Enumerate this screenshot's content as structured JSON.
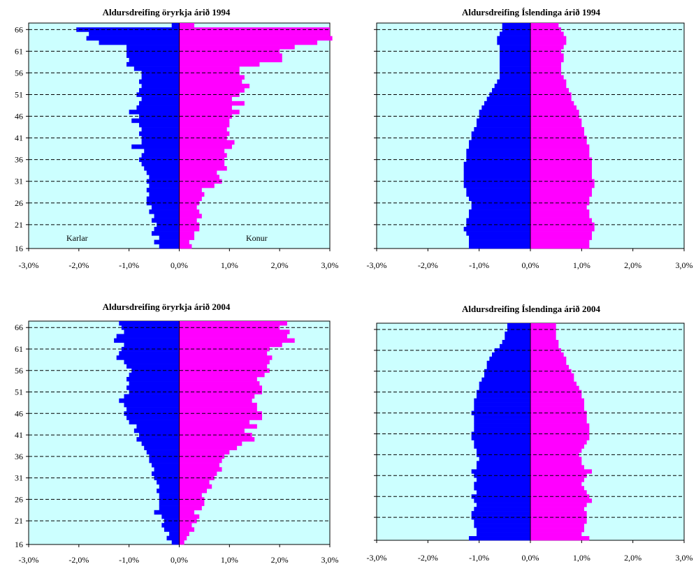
{
  "colors": {
    "plot_bg": "#ccffff",
    "male": "#0000ff",
    "female": "#ff00ff",
    "grid": "#000000"
  },
  "chart_data": [
    {
      "type": "bar",
      "orientation": "horizontal",
      "title": "Aldursdreifing öryrkja árið 1994",
      "y_tick_labels": [
        "66",
        "61",
        "56",
        "51",
        "46",
        "41",
        "36",
        "31",
        "26",
        "21",
        "16"
      ],
      "x_tick_labels": [
        "-3,0%",
        "-2,0%",
        "-1,0%",
        "0,0%",
        "1,0%",
        "2,0%",
        "3,0%"
      ],
      "xlim": [
        -3,
        3
      ],
      "ages": [
        16,
        17,
        18,
        19,
        20,
        21,
        22,
        23,
        24,
        25,
        26,
        27,
        28,
        29,
        30,
        31,
        32,
        33,
        34,
        35,
        36,
        37,
        38,
        39,
        40,
        41,
        42,
        43,
        44,
        45,
        46,
        47,
        48,
        49,
        50,
        51,
        52,
        53,
        54,
        55,
        56,
        57,
        58,
        59,
        60,
        61,
        62,
        63,
        64,
        65,
        66,
        67
      ],
      "series": [
        {
          "name": "Karlar",
          "values": [
            -0.4,
            -0.5,
            -0.4,
            -0.55,
            -0.5,
            -0.45,
            -0.55,
            -0.5,
            -0.6,
            -0.55,
            -0.65,
            -0.65,
            -0.6,
            -0.65,
            -0.6,
            -0.65,
            -0.6,
            -0.65,
            -0.7,
            -0.75,
            -0.8,
            -0.75,
            -0.7,
            -0.95,
            -0.75,
            -0.75,
            -0.8,
            -0.75,
            -0.8,
            -0.95,
            -0.8,
            -1.0,
            -0.85,
            -0.8,
            -0.75,
            -0.85,
            -0.8,
            -0.75,
            -0.8,
            -0.75,
            -0.75,
            -0.9,
            -1.05,
            -1.0,
            -1.05,
            -1.05,
            -1.05,
            -1.6,
            -1.85,
            -1.8,
            -2.05,
            -0.15
          ]
        },
        {
          "name": "Konur",
          "values": [
            0.25,
            0.2,
            0.3,
            0.3,
            0.4,
            0.4,
            0.35,
            0.45,
            0.4,
            0.35,
            0.4,
            0.45,
            0.5,
            0.45,
            0.7,
            0.85,
            0.8,
            0.75,
            0.95,
            0.9,
            0.9,
            0.95,
            0.9,
            1.05,
            1.1,
            0.95,
            1.0,
            0.95,
            1.0,
            1.0,
            1.05,
            1.2,
            1.05,
            1.3,
            1.05,
            1.2,
            1.3,
            1.4,
            1.25,
            1.3,
            1.2,
            1.2,
            1.6,
            2.05,
            2.05,
            2.0,
            2.3,
            2.75,
            3.05,
            3.0,
            3.0,
            0.3
          ]
        }
      ],
      "annotations": [
        "Karlar",
        "Konur"
      ]
    },
    {
      "type": "bar",
      "orientation": "horizontal",
      "title": "Aldursdreifing Íslendinga árið 1994",
      "x_tick_labels": [
        "-3,0%",
        "-2,0%",
        "-1,0%",
        "0,0%",
        "1,0%",
        "2,0%",
        "3,0%"
      ],
      "xlim": [
        -3,
        3
      ],
      "ages": [
        16,
        17,
        18,
        19,
        20,
        21,
        22,
        23,
        24,
        25,
        26,
        27,
        28,
        29,
        30,
        31,
        32,
        33,
        34,
        35,
        36,
        37,
        38,
        39,
        40,
        41,
        42,
        43,
        44,
        45,
        46,
        47,
        48,
        49,
        50,
        51,
        52,
        53,
        54,
        55,
        56,
        57,
        58,
        59,
        60,
        61,
        62,
        63,
        64,
        65,
        66,
        67
      ],
      "series": [
        {
          "name": "Karlar",
          "values": [
            -1.2,
            -1.2,
            -1.2,
            -1.25,
            -1.3,
            -1.25,
            -1.25,
            -1.2,
            -1.2,
            -1.15,
            -1.15,
            -1.2,
            -1.25,
            -1.25,
            -1.3,
            -1.3,
            -1.3,
            -1.3,
            -1.3,
            -1.3,
            -1.25,
            -1.25,
            -1.25,
            -1.2,
            -1.2,
            -1.15,
            -1.15,
            -1.1,
            -1.05,
            -1.05,
            -1.0,
            -1.0,
            -0.95,
            -0.9,
            -0.85,
            -0.8,
            -0.75,
            -0.7,
            -0.65,
            -0.6,
            -0.6,
            -0.6,
            -0.6,
            -0.6,
            -0.6,
            -0.6,
            -0.6,
            -0.65,
            -0.65,
            -0.6,
            -0.55,
            -0.55
          ]
        },
        {
          "name": "Konur",
          "values": [
            1.15,
            1.15,
            1.2,
            1.2,
            1.25,
            1.25,
            1.2,
            1.15,
            1.15,
            1.1,
            1.15,
            1.15,
            1.2,
            1.2,
            1.25,
            1.25,
            1.2,
            1.2,
            1.2,
            1.2,
            1.2,
            1.15,
            1.15,
            1.15,
            1.1,
            1.1,
            1.05,
            1.05,
            1.0,
            1.0,
            0.95,
            0.95,
            0.9,
            0.85,
            0.8,
            0.8,
            0.75,
            0.7,
            0.7,
            0.65,
            0.6,
            0.6,
            0.6,
            0.65,
            0.65,
            0.6,
            0.65,
            0.7,
            0.7,
            0.65,
            0.6,
            0.55
          ]
        }
      ]
    },
    {
      "type": "bar",
      "orientation": "horizontal",
      "title": "Aldursdreifing öryrkja árið 2004",
      "y_tick_labels": [
        "66",
        "61",
        "56",
        "51",
        "46",
        "41",
        "36",
        "31",
        "26",
        "21",
        "16"
      ],
      "x_tick_labels": [
        "-3,0%",
        "-2,0%",
        "-1,0%",
        "0,0%",
        "1,0%",
        "2,0%",
        "3,0%"
      ],
      "xlim": [
        -3,
        3
      ],
      "ages": [
        16,
        17,
        18,
        19,
        20,
        21,
        22,
        23,
        24,
        25,
        26,
        27,
        28,
        29,
        30,
        31,
        32,
        33,
        34,
        35,
        36,
        37,
        38,
        39,
        40,
        41,
        42,
        43,
        44,
        45,
        46,
        47,
        48,
        49,
        50,
        51,
        52,
        53,
        54,
        55,
        56,
        57,
        58,
        59,
        60,
        61,
        62,
        63,
        64,
        65,
        66,
        67
      ],
      "series": [
        {
          "name": "Karlar",
          "values": [
            -0.15,
            -0.25,
            -0.2,
            -0.3,
            -0.35,
            -0.3,
            -0.35,
            -0.5,
            -0.4,
            -0.4,
            -0.4,
            -0.4,
            -0.45,
            -0.4,
            -0.45,
            -0.5,
            -0.55,
            -0.5,
            -0.55,
            -0.6,
            -0.6,
            -0.65,
            -0.7,
            -0.75,
            -0.85,
            -0.8,
            -0.9,
            -0.85,
            -1.0,
            -1.05,
            -1.1,
            -1.05,
            -1.1,
            -1.2,
            -1.1,
            -1.0,
            -1.05,
            -1.0,
            -1.05,
            -1.0,
            -0.95,
            -1.05,
            -1.1,
            -1.25,
            -1.2,
            -1.15,
            -1.1,
            -1.3,
            -1.25,
            -1.1,
            -1.15,
            -1.2
          ]
        },
        {
          "name": "Konur",
          "values": [
            0.1,
            0.15,
            0.2,
            0.3,
            0.25,
            0.35,
            0.4,
            0.3,
            0.45,
            0.5,
            0.5,
            0.45,
            0.55,
            0.65,
            0.6,
            0.7,
            0.75,
            0.85,
            0.8,
            0.85,
            0.9,
            1.0,
            1.15,
            1.25,
            1.5,
            1.45,
            1.3,
            1.55,
            1.4,
            1.65,
            1.65,
            1.55,
            1.55,
            1.45,
            1.5,
            1.65,
            1.65,
            1.6,
            1.55,
            1.7,
            1.8,
            1.75,
            1.8,
            1.85,
            1.75,
            1.8,
            2.05,
            2.3,
            2.15,
            2.2,
            2.0,
            2.15
          ]
        }
      ]
    },
    {
      "type": "bar",
      "orientation": "horizontal",
      "title": "Aldursdreifing Íslendinga árið 2004",
      "x_tick_labels": [
        "-3,0%",
        "-2,0%",
        "-1,0%",
        "0,0%",
        "1,0%",
        "2,0%",
        "3,0%"
      ],
      "xlim": [
        -3,
        3
      ],
      "ages": [
        16,
        17,
        18,
        19,
        20,
        21,
        22,
        23,
        24,
        25,
        26,
        27,
        28,
        29,
        30,
        31,
        32,
        33,
        34,
        35,
        36,
        37,
        38,
        39,
        40,
        41,
        42,
        43,
        44,
        45,
        46,
        47,
        48,
        49,
        50,
        51,
        52,
        53,
        54,
        55,
        56,
        57,
        58,
        59,
        60,
        61,
        62,
        63,
        64,
        65,
        66,
        67
      ],
      "series": [
        {
          "name": "Karlar",
          "values": [
            -1.2,
            -1.05,
            -1.05,
            -1.1,
            -1.1,
            -1.15,
            -1.15,
            -1.1,
            -1.05,
            -1.1,
            -1.15,
            -1.05,
            -1.1,
            -1.1,
            -1.05,
            -1.1,
            -1.15,
            -1.05,
            -1.05,
            -1.0,
            -1.05,
            -1.05,
            -1.1,
            -1.1,
            -1.15,
            -1.15,
            -1.1,
            -1.1,
            -1.1,
            -1.1,
            -1.15,
            -1.1,
            -1.1,
            -1.1,
            -1.05,
            -1.05,
            -1.0,
            -1.0,
            -0.95,
            -0.9,
            -0.9,
            -0.85,
            -0.85,
            -0.8,
            -0.75,
            -0.7,
            -0.6,
            -0.55,
            -0.5,
            -0.5,
            -0.45,
            -0.45
          ]
        },
        {
          "name": "Konur",
          "values": [
            1.15,
            1.0,
            1.05,
            1.05,
            1.1,
            1.1,
            1.1,
            1.05,
            1.1,
            1.2,
            1.15,
            1.1,
            1.05,
            1.0,
            1.05,
            1.1,
            1.2,
            1.05,
            1.0,
            1.0,
            0.95,
            1.0,
            1.05,
            1.1,
            1.15,
            1.15,
            1.15,
            1.15,
            1.1,
            1.1,
            1.1,
            1.05,
            1.05,
            1.05,
            1.0,
            1.0,
            0.95,
            0.9,
            0.85,
            0.85,
            0.8,
            0.75,
            0.7,
            0.7,
            0.65,
            0.6,
            0.55,
            0.55,
            0.5,
            0.5,
            0.5,
            0.5
          ]
        }
      ]
    }
  ]
}
